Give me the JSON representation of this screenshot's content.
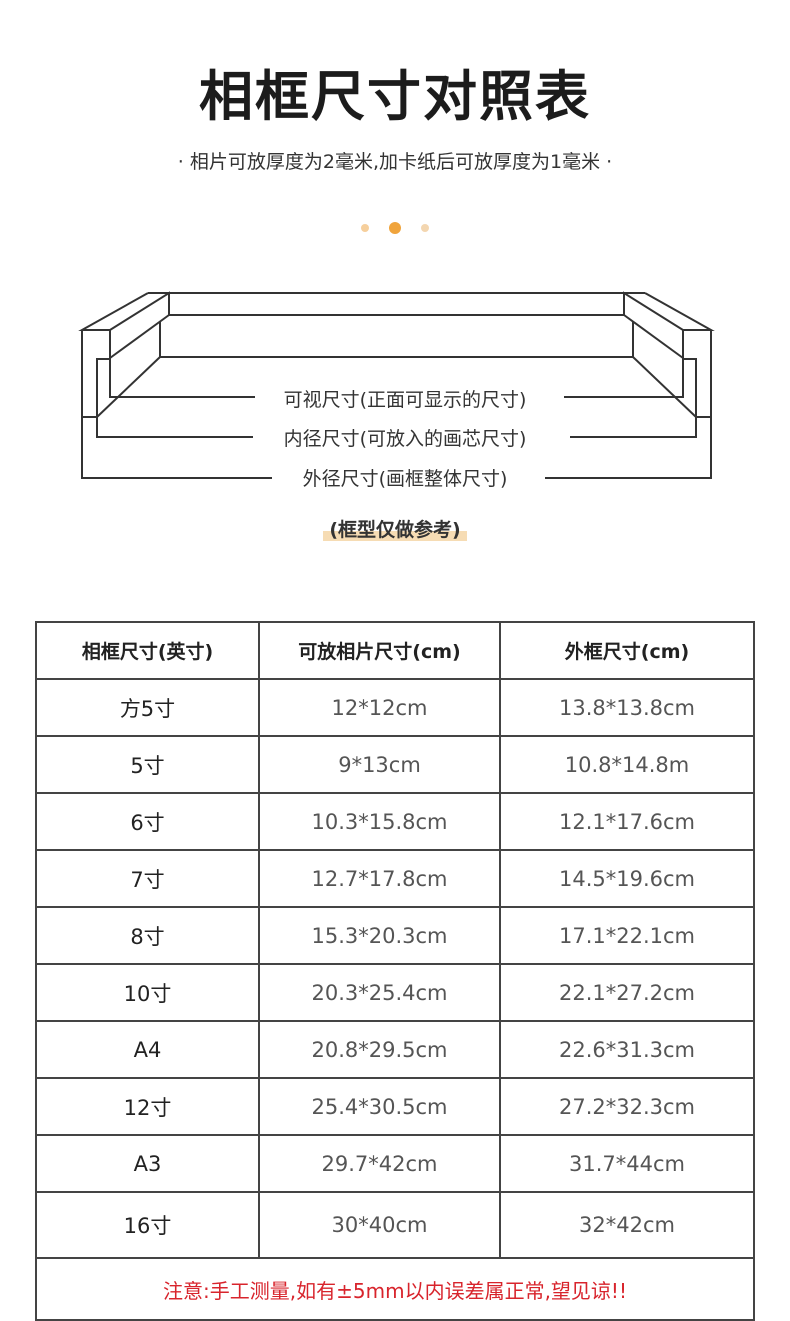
{
  "title": "相框尺寸对照表",
  "subtitle": "· 相片可放厚度为2毫米,加卡纸后可放厚度为1毫米 ·",
  "dots": [
    "#f6cf9c",
    "#f0a43c",
    "#f3d6b0"
  ],
  "diagram": {
    "labels": [
      "可视尺寸(正面可显示的尺寸)",
      "内径尺寸(可放入的画芯尺寸)",
      "外径尺寸(画框整体尺寸)"
    ],
    "caption": "(框型仅做参考)",
    "highlight_color": "#f6dcb4"
  },
  "table": {
    "headers": [
      "相框尺寸(英寸)",
      "可放相片尺寸(cm)",
      "外框尺寸(cm)"
    ],
    "rows": [
      [
        "方5寸",
        "12*12cm",
        "13.8*13.8cm"
      ],
      [
        "5寸",
        "9*13cm",
        "10.8*14.8m"
      ],
      [
        "6寸",
        "10.3*15.8cm",
        "12.1*17.6cm"
      ],
      [
        "7寸",
        "12.7*17.8cm",
        "14.5*19.6cm"
      ],
      [
        "8寸",
        "15.3*20.3cm",
        "17.1*22.1cm"
      ],
      [
        "10寸",
        "20.3*25.4cm",
        "22.1*27.2cm"
      ],
      [
        "A4",
        "20.8*29.5cm",
        "22.6*31.3cm"
      ],
      [
        "12寸",
        "25.4*30.5cm",
        "27.2*32.3cm"
      ],
      [
        "A3",
        "29.7*42cm",
        "31.7*44cm"
      ],
      [
        "16寸",
        "30*40cm",
        "32*42cm"
      ]
    ],
    "note": "注意:手工测量,如有±5mm以内误差属正常,望见谅!!",
    "note_color": "#d8242c"
  }
}
